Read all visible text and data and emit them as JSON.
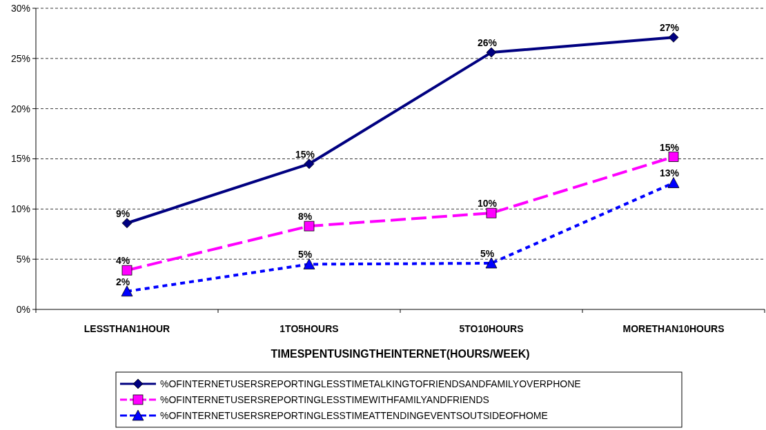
{
  "chart_data": {
    "type": "line",
    "xlabel": "TIMESPENTUSINGTHEINTERNET(HOURS/WEEK)",
    "categories": [
      "LESSTHAN1HOUR",
      "1TO5HOURS",
      "5TO10HOURS",
      "MORETHAN10HOURS"
    ],
    "ylim": [
      0,
      30
    ],
    "yticks": [
      {
        "value": 0,
        "label": "0%"
      },
      {
        "value": 5,
        "label": "5%"
      },
      {
        "value": 10,
        "label": "10%"
      },
      {
        "value": 15,
        "label": "15%"
      },
      {
        "value": 20,
        "label": "20%"
      },
      {
        "value": 25,
        "label": "25%"
      },
      {
        "value": 30,
        "label": "30%"
      }
    ],
    "grid": "y",
    "legend": "bottom",
    "series": [
      {
        "name": "%OFINTERNETUSERSREPORTINGLESSTIMETALKINGTOFRIENDSANDFAMILYOVERPHONE",
        "color": "#000080",
        "values": [
          8.6,
          14.5,
          25.6,
          27.1
        ],
        "value_labels": [
          "9%",
          "15%",
          "26%",
          "27%"
        ],
        "marker": "diamond",
        "line_style": "solid"
      },
      {
        "name": "%OFINTERNETUSERSREPORTINGLESSTIMEWITHFAMILYANDFRIENDS",
        "color": "#ff00ff",
        "values": [
          3.9,
          8.3,
          9.6,
          15.2
        ],
        "value_labels": [
          "4%",
          "8%",
          "10%",
          "15%"
        ],
        "marker": "square",
        "line_style": "dashed"
      },
      {
        "name": "%OFINTERNETUSERSREPORTINGLESSTIMEATTENDINGEVENTSOUTSIDEOFHOME",
        "color": "#0000ff",
        "values": [
          1.8,
          4.5,
          4.6,
          12.6
        ],
        "value_labels": [
          "2%",
          "5%",
          "5%",
          "13%"
        ],
        "marker": "triangle",
        "line_style": "dotted"
      }
    ]
  }
}
